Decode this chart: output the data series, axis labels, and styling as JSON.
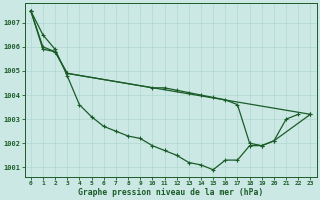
{
  "title": "Graphe pression niveau de la mer (hPa)",
  "background_color": "#cce8e4",
  "grid_color": "#b0d8d0",
  "line_color": "#1a5c28",
  "ylim": [
    1000.6,
    1007.8
  ],
  "yticks": [
    1001,
    1002,
    1003,
    1004,
    1005,
    1006,
    1007
  ],
  "xlim": [
    -0.5,
    23.5
  ],
  "series1_x": [
    0,
    1,
    2,
    3,
    4,
    5,
    6,
    7,
    8,
    9,
    10,
    11,
    12,
    13,
    14,
    15,
    16,
    17,
    18,
    19,
    20,
    21,
    22
  ],
  "series1_y": [
    1007.5,
    1006.5,
    1005.9,
    1004.8,
    1003.6,
    1003.1,
    1002.7,
    1002.5,
    1002.3,
    1002.2,
    1001.9,
    1001.7,
    1001.5,
    1001.2,
    1001.1,
    1000.9,
    1001.3,
    1001.3,
    1001.9,
    1001.9,
    1002.1,
    1003.0,
    1003.2
  ],
  "series2_x": [
    0,
    1,
    2,
    3,
    10,
    11,
    12,
    13,
    14,
    15,
    16,
    17,
    18,
    19,
    20,
    23
  ],
  "series2_y": [
    1007.5,
    1005.9,
    1005.8,
    1004.9,
    1004.3,
    1004.3,
    1004.2,
    1004.1,
    1004.0,
    1003.9,
    1003.8,
    1003.6,
    1002.0,
    1001.9,
    1002.1,
    1003.2
  ],
  "series3_x": [
    0,
    1,
    2,
    3,
    23
  ],
  "series3_y": [
    1007.5,
    1006.0,
    1005.8,
    1004.9,
    1003.2
  ]
}
